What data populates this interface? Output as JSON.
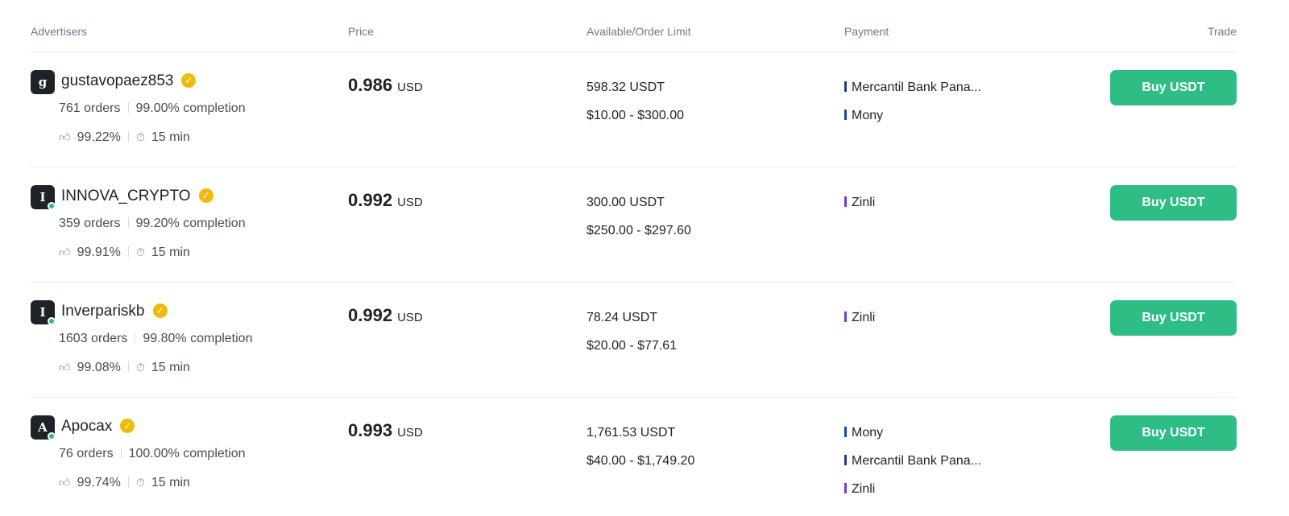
{
  "headers": {
    "advertisers": "Advertisers",
    "price": "Price",
    "available": "Available/Order Limit",
    "payment": "Payment",
    "trade": "Trade"
  },
  "colors": {
    "accent": "#2ebd85",
    "badge": "#f0b90b",
    "mercantil": "#1e3a8a",
    "mony": "#1e40af",
    "zinli": "#6d3fd6"
  },
  "rows": [
    {
      "avatar": "g",
      "online": false,
      "name": "gustavopaez853",
      "orders": "761 orders",
      "completion": "99.00% completion",
      "rating": "99.22%",
      "time": "15 min",
      "price": "0.986",
      "currency": "USD",
      "available": "598.32 USDT",
      "limit": "$10.00 - $300.00",
      "payments": [
        "Mercantil Bank Pana...",
        "Mony"
      ],
      "button": "Buy USDT"
    },
    {
      "avatar": "I",
      "online": true,
      "name": "INNOVA_CRYPTO",
      "orders": "359 orders",
      "completion": "99.20% completion",
      "rating": "99.91%",
      "time": "15 min",
      "price": "0.992",
      "currency": "USD",
      "available": "300.00 USDT",
      "limit": "$250.00 - $297.60",
      "payments": [
        "Zinli"
      ],
      "button": "Buy USDT"
    },
    {
      "avatar": "I",
      "online": true,
      "name": "Inverpariskb",
      "orders": "1603 orders",
      "completion": "99.80% completion",
      "rating": "99.08%",
      "time": "15 min",
      "price": "0.992",
      "currency": "USD",
      "available": "78.24 USDT",
      "limit": "$20.00 - $77.61",
      "payments": [
        "Zinli"
      ],
      "button": "Buy USDT"
    },
    {
      "avatar": "A",
      "online": true,
      "name": "Apocax",
      "orders": "76 orders",
      "completion": "100.00% completion",
      "rating": "99.74%",
      "time": "15 min",
      "price": "0.993",
      "currency": "USD",
      "available": "1,761.53 USDT",
      "limit": "$40.00 - $1,749.20",
      "payments": [
        "Mony",
        "Mercantil Bank Pana...",
        "Zinli"
      ],
      "button": "Buy USDT"
    }
  ]
}
